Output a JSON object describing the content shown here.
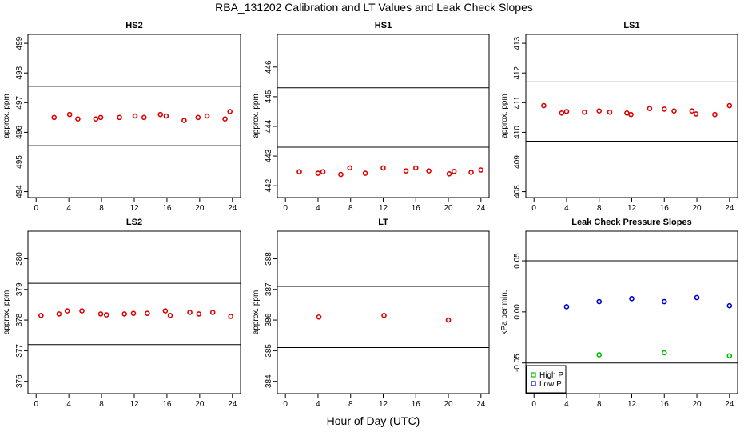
{
  "figure": {
    "title": "RBA_131202  Calibration and LT Values and Leak Check Slopes",
    "xlabel": "Hour of Day (UTC)"
  },
  "chart_data": [
    {
      "type": "scatter",
      "title": "HS2",
      "ylabel": "approx. ppm",
      "xlim": [
        -1,
        25
      ],
      "ylim": [
        493.8,
        499.3
      ],
      "xticks": [
        0,
        4,
        8,
        12,
        16,
        20,
        24
      ],
      "yticks": [
        494,
        495,
        496,
        497,
        498,
        499
      ],
      "hlines": [
        497.55,
        495.55
      ],
      "color": "#dd0000",
      "series": [
        {
          "x": [
            2.2,
            4.1,
            5.1,
            7.3,
            7.9,
            10.2,
            12.1,
            13.2,
            15.2,
            15.9,
            18.1,
            19.8,
            20.9,
            23.1,
            23.7
          ],
          "y": [
            496.5,
            496.6,
            496.45,
            496.45,
            496.5,
            496.5,
            496.55,
            496.5,
            496.6,
            496.55,
            496.4,
            496.5,
            496.55,
            496.45,
            496.7
          ]
        }
      ]
    },
    {
      "type": "scatter",
      "title": "HS1",
      "ylabel": "approx. ppm",
      "xlim": [
        -1,
        25
      ],
      "ylim": [
        441.6,
        447.1
      ],
      "xticks": [
        0,
        4,
        8,
        12,
        16,
        20,
        24
      ],
      "yticks": [
        442,
        443,
        444,
        445,
        446
      ],
      "hlines": [
        445.3,
        443.3
      ],
      "color": "#dd0000",
      "series": [
        {
          "x": [
            1.7,
            4.0,
            4.6,
            6.8,
            7.9,
            9.8,
            12.0,
            14.8,
            16.0,
            17.6,
            20.1,
            20.7,
            22.8,
            24.0
          ],
          "y": [
            442.47,
            442.42,
            442.47,
            442.38,
            442.6,
            442.42,
            442.6,
            442.5,
            442.6,
            442.5,
            442.4,
            442.48,
            442.45,
            442.53
          ]
        }
      ]
    },
    {
      "type": "scatter",
      "title": "LS1",
      "ylabel": "approx. ppm",
      "xlim": [
        -1,
        25
      ],
      "ylim": [
        407.8,
        413.3
      ],
      "xticks": [
        0,
        4,
        8,
        12,
        16,
        20,
        24
      ],
      "yticks": [
        408,
        409,
        410,
        411,
        412,
        413
      ],
      "hlines": [
        411.7,
        409.7
      ],
      "color": "#dd0000",
      "series": [
        {
          "x": [
            1.2,
            3.4,
            4.0,
            6.2,
            8.0,
            9.3,
            11.4,
            11.9,
            14.2,
            16.0,
            17.2,
            19.4,
            19.9,
            22.2,
            24.0
          ],
          "y": [
            410.9,
            410.65,
            410.7,
            410.68,
            410.72,
            410.68,
            410.65,
            410.6,
            410.8,
            410.78,
            410.72,
            410.72,
            410.62,
            410.6,
            410.9
          ]
        }
      ]
    },
    {
      "type": "scatter",
      "title": "LS2",
      "ylabel": "approx. ppm",
      "xlim": [
        -1,
        25
      ],
      "ylim": [
        375.6,
        380.9
      ],
      "xticks": [
        0,
        4,
        8,
        12,
        16,
        20,
        24
      ],
      "yticks": [
        376,
        377,
        378,
        379,
        380
      ],
      "hlines": [
        379.2,
        377.2
      ],
      "color": "#dd0000",
      "series": [
        {
          "x": [
            0.6,
            2.8,
            3.8,
            5.6,
            7.9,
            8.6,
            10.8,
            11.9,
            13.6,
            15.8,
            16.4,
            18.8,
            19.9,
            21.6,
            23.8
          ],
          "y": [
            378.15,
            378.2,
            378.3,
            378.3,
            378.2,
            378.17,
            378.2,
            378.22,
            378.22,
            378.3,
            378.15,
            378.25,
            378.2,
            378.25,
            378.12
          ]
        }
      ]
    },
    {
      "type": "scatter",
      "title": "LT",
      "ylabel": "approx. ppm",
      "xlim": [
        -1,
        25
      ],
      "ylim": [
        383.6,
        388.9
      ],
      "xticks": [
        0,
        4,
        8,
        12,
        16,
        20,
        24
      ],
      "yticks": [
        384,
        385,
        386,
        387,
        388
      ],
      "hlines": [
        387.1,
        385.1
      ],
      "color": "#dd0000",
      "series": [
        {
          "x": [
            4.1,
            12.1,
            20.0
          ],
          "y": [
            386.1,
            386.15,
            386.0
          ]
        }
      ]
    },
    {
      "type": "scatter",
      "title": "Leak Check Pressure Slopes",
      "ylabel": "kPa per min.",
      "xlim": [
        -1,
        25
      ],
      "ylim": [
        -0.08,
        0.079
      ],
      "xticks": [
        0,
        4,
        8,
        12,
        16,
        20,
        24
      ],
      "yticks": [
        -0.05,
        0.0,
        0.05
      ],
      "ytick_labels": [
        "-0.05",
        "0.00",
        "0.05"
      ],
      "hlines": [
        0.05,
        -0.05
      ],
      "legend": "bottom-left",
      "series": [
        {
          "name": "High P",
          "color": "#00bb00",
          "x": [
            8.0,
            16.0,
            24.0
          ],
          "y": [
            -0.042,
            -0.04,
            -0.043
          ]
        },
        {
          "name": "Low P",
          "color": "#0000cc",
          "x": [
            4.0,
            8.0,
            12.0,
            16.0,
            20.0,
            24.0
          ],
          "y": [
            0.005,
            0.01,
            0.013,
            0.01,
            0.014,
            0.006
          ]
        }
      ]
    }
  ]
}
